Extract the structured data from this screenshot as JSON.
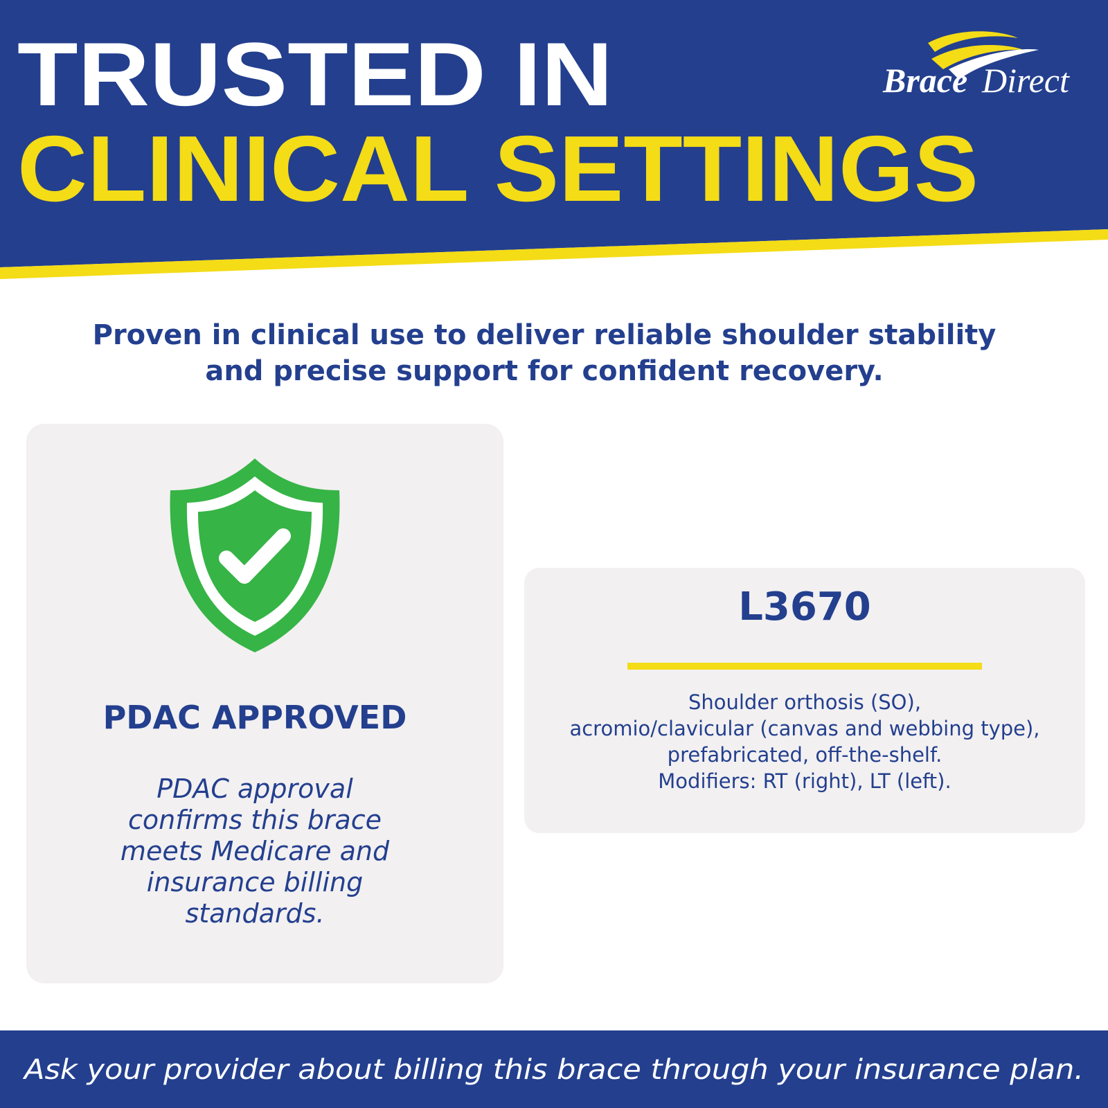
{
  "header": {
    "title_line1": "TRUSTED IN",
    "title_line2": "CLINICAL SETTINGS"
  },
  "logo": {
    "brand": "Brace",
    "brand2": "Direct"
  },
  "intro": {
    "lines": [
      "Proven in clinical use to deliver reliable shoulder stability",
      "and precise support for confident recovery."
    ]
  },
  "card_left": {
    "heading": "PDAC APPROVED",
    "lines": [
      "PDAC approval",
      "confirms this brace",
      "meets Medicare and",
      "insurance billing",
      "standards."
    ]
  },
  "card_right": {
    "code": "L3670",
    "lines": [
      "Shoulder orthosis (SO),",
      "acromio/clavicular (canvas and webbing type),",
      "prefabricated, off-the-shelf.",
      "Modifiers: RT (right), LT (left)."
    ]
  },
  "footer": {
    "text": "Ask your provider about billing this brace through your insurance plan."
  }
}
